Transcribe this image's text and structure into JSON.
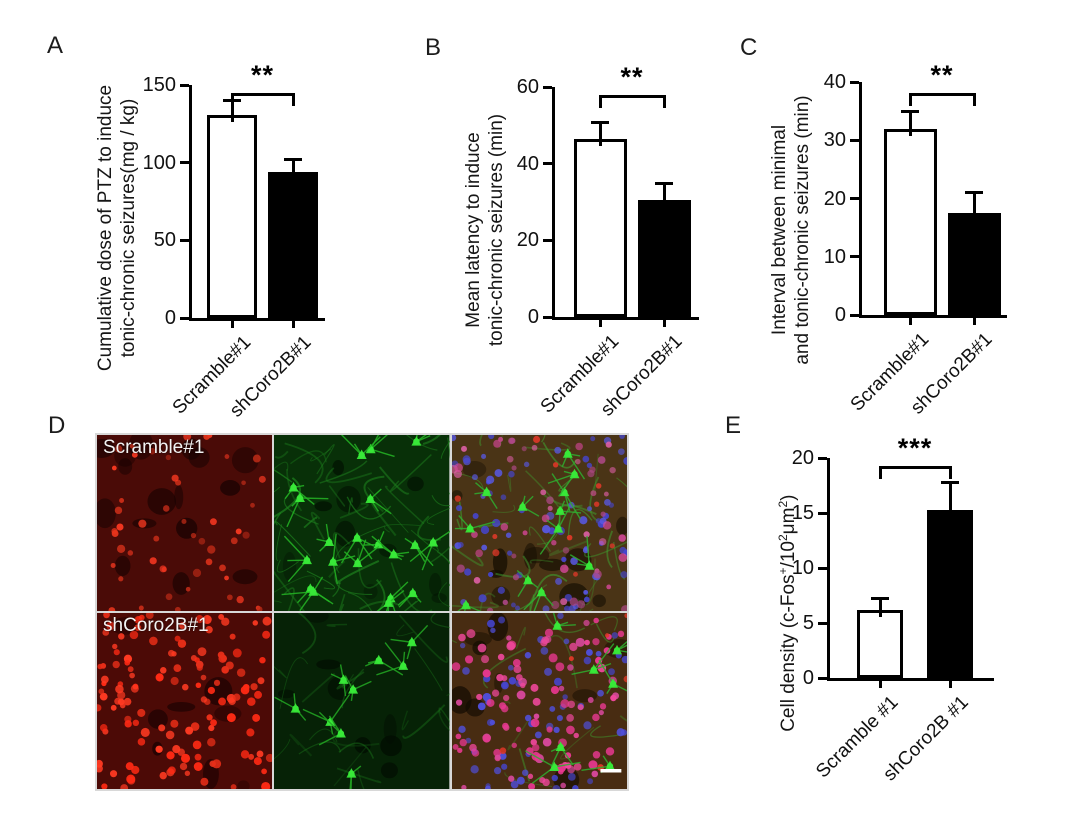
{
  "panels": {
    "A": {
      "letter": "A"
    },
    "B": {
      "letter": "B"
    },
    "C": {
      "letter": "C"
    },
    "D": {
      "letter": "D"
    },
    "E": {
      "letter": "E"
    }
  },
  "chart_data": [
    {
      "panel": "A",
      "type": "bar",
      "ylabel_lines": [
        "Cumulative dose of PTZ to induce",
        "tonic-chronic seizures(mg / kg)"
      ],
      "categories": [
        "Scramble#1",
        "shCoro2B#1"
      ],
      "values": [
        131,
        94
      ],
      "errors": [
        9,
        8
      ],
      "ylim": [
        0,
        150
      ],
      "yticks": [
        0,
        50,
        100,
        150
      ],
      "significance": "**",
      "bar_fills": [
        "#ffffff",
        "#000000"
      ]
    },
    {
      "panel": "B",
      "type": "bar",
      "ylabel_lines": [
        "Mean latency to induce",
        "tonic-chronic seizures (min)"
      ],
      "categories": [
        "Scramble#1",
        "shCoro2B#1"
      ],
      "values": [
        46.5,
        30.5
      ],
      "errors": [
        4.2,
        4.2
      ],
      "ylim": [
        0,
        60
      ],
      "yticks": [
        0,
        20,
        40,
        60
      ],
      "significance": "**",
      "bar_fills": [
        "#ffffff",
        "#000000"
      ]
    },
    {
      "panel": "C",
      "type": "bar",
      "ylabel_lines": [
        "Interval between minimal",
        "and tonic-chronic seizures (min)"
      ],
      "categories": [
        "Scramble#1",
        "shCoro2B#1"
      ],
      "values": [
        32,
        17.5
      ],
      "errors": [
        3,
        3.5
      ],
      "ylim": [
        0,
        40
      ],
      "yticks": [
        0,
        10,
        20,
        30,
        40
      ],
      "significance": "**",
      "bar_fills": [
        "#ffffff",
        "#000000"
      ]
    },
    {
      "panel": "E",
      "type": "bar",
      "ylabel_segments": [
        {
          "text": "Cell density (c-Fos"
        },
        {
          "text": "+",
          "sup": true
        },
        {
          "text": "/10"
        },
        {
          "text": "2",
          "sup": true
        },
        {
          "text": "μm"
        },
        {
          "text": "2",
          "sup": true
        },
        {
          "text": ")"
        }
      ],
      "categories": [
        "Scramble #1",
        "shCoro2B #1"
      ],
      "values": [
        6.2,
        15.3
      ],
      "errors": [
        1.0,
        2.5
      ],
      "ylim": [
        0,
        20
      ],
      "yticks": [
        0,
        5,
        10,
        15,
        20
      ],
      "significance": "***",
      "bar_fills": [
        "#ffffff",
        "#000000"
      ]
    }
  ],
  "microscopy": {
    "panel": "D",
    "row_labels": [
      "Scramble#1",
      "shCoro2B#1"
    ],
    "channels": [
      "c-fos-red-channel",
      "neuron-green-channel",
      "merge-channel"
    ],
    "colors": {
      "red_bg": "#4a0b07",
      "red_dot": "#ff3a22",
      "green_bg": "#083008",
      "green_cell": "#38e838",
      "green_line": "#1d7d1d",
      "merge_bg": "#4a3416",
      "magenta_dot": "#d8489c",
      "blue_dot": "#4646d2",
      "scale_bar_color": "#ffffff"
    },
    "has_scale_bar": true
  }
}
